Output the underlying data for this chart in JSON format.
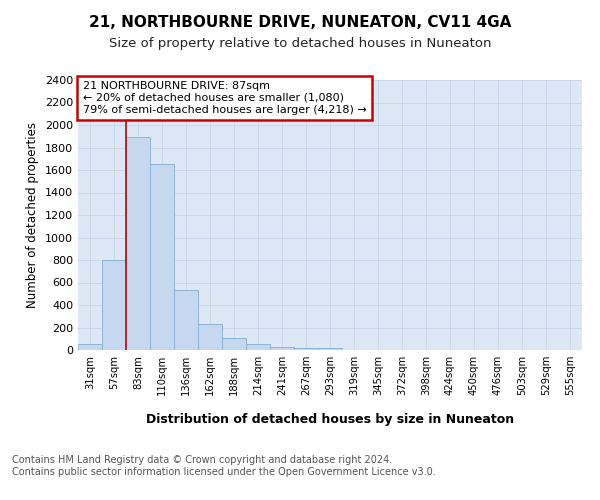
{
  "title1": "21, NORTHBOURNE DRIVE, NUNEATON, CV11 4GA",
  "title2": "Size of property relative to detached houses in Nuneaton",
  "xlabel": "Distribution of detached houses by size in Nuneaton",
  "ylabel": "Number of detached properties",
  "footnote": "Contains HM Land Registry data © Crown copyright and database right 2024.\nContains public sector information licensed under the Open Government Licence v3.0.",
  "categories": [
    "31sqm",
    "57sqm",
    "83sqm",
    "110sqm",
    "136sqm",
    "162sqm",
    "188sqm",
    "214sqm",
    "241sqm",
    "267sqm",
    "293sqm",
    "319sqm",
    "345sqm",
    "372sqm",
    "398sqm",
    "424sqm",
    "450sqm",
    "476sqm",
    "503sqm",
    "529sqm",
    "555sqm"
  ],
  "values": [
    55,
    800,
    1890,
    1650,
    530,
    235,
    110,
    50,
    30,
    20,
    15,
    0,
    0,
    0,
    0,
    0,
    0,
    0,
    0,
    0,
    0
  ],
  "bar_color": "#c5d8f0",
  "bar_edge_color": "#8ab4d8",
  "annotation_text": "21 NORTHBOURNE DRIVE: 87sqm\n← 20% of detached houses are smaller (1,080)\n79% of semi-detached houses are larger (4,218) →",
  "annotation_box_edge_color": "#cc0000",
  "vline_color": "#cc0000",
  "vline_x_bar_index": 2,
  "ylim": [
    0,
    2400
  ],
  "yticks": [
    0,
    200,
    400,
    600,
    800,
    1000,
    1200,
    1400,
    1600,
    1800,
    2000,
    2200,
    2400
  ],
  "grid_color": "#c8d4e8",
  "background_color": "#dce8f5",
  "title1_fontsize": 11,
  "title2_fontsize": 9.5,
  "footnote_fontsize": 7,
  "xlabel_fontsize": 9,
  "ylabel_fontsize": 8.5,
  "annot_fontsize": 8
}
